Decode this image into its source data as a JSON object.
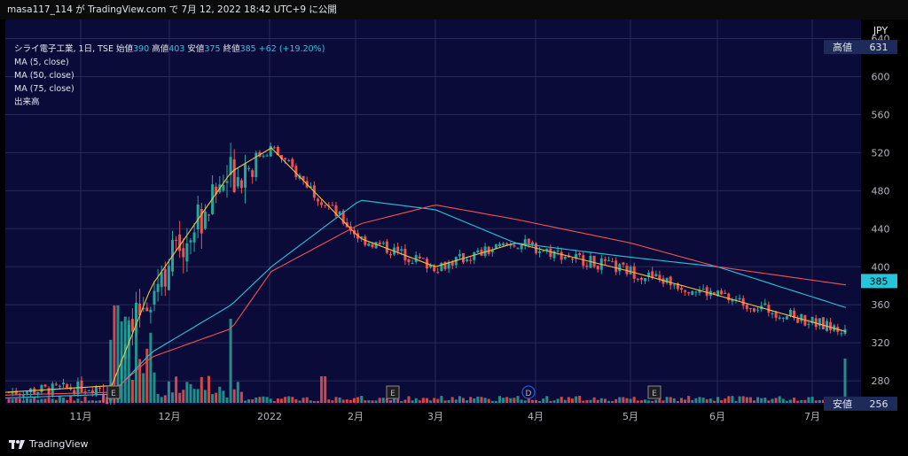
{
  "header": {
    "text": "masa117_114 が TradingView.com で 7月 12, 2022 18:42 UTC+9 に公開"
  },
  "legend": {
    "symbol": "シライ電子工業, 1日, TSE",
    "open_label": "始値",
    "open": "390",
    "high_label": "高値",
    "high": "403",
    "low_label": "安値",
    "low": "375",
    "close_label": "終値",
    "close": "385",
    "change": "+62 (+19.20%)",
    "indicators": [
      "MA (5, close)",
      "MA (50, close)",
      "MA (75, close)",
      "出来高"
    ]
  },
  "footer": {
    "brand": "TradingView"
  },
  "colors": {
    "up": "#26a69a",
    "down": "#ef5350",
    "ma5": "#f5c242",
    "ma50": "#26c6da",
    "ma75": "#ef5350",
    "bg": "#0a0a33"
  },
  "chart_data": {
    "type": "candlestick",
    "currency": "JPY",
    "y_ticks": [
      280,
      320,
      360,
      400,
      440,
      480,
      520,
      560,
      600,
      640
    ],
    "ylim": [
      255,
      660
    ],
    "x_ticks": [
      "11月",
      "12月",
      "2022",
      "2月",
      "3月",
      "4月",
      "5月",
      "6月",
      "7月"
    ],
    "price_tags": {
      "high_label": "高値",
      "high": "631",
      "low_label": "安値",
      "low": "256",
      "last": "385"
    },
    "event_markers": [
      "E",
      "E",
      "D",
      "E"
    ],
    "series": [
      {
        "name": "MA (5, close)",
        "x": [
          "11月",
          "11月下旬",
          "12月",
          "12月中旬",
          "2022",
          "2月",
          "3月",
          "4月",
          "5月",
          "6月",
          "7月"
        ],
        "values": [
          268,
          275,
          380,
          500,
          525,
          430,
          400,
          425,
          395,
          370,
          330
        ]
      },
      {
        "name": "MA (50, close)",
        "x": [
          "11月",
          "11月下旬",
          "12月",
          "12月中旬",
          "2022",
          "2月",
          "3月",
          "4月",
          "5月",
          "6月",
          "7月"
        ],
        "values": [
          262,
          266,
          310,
          360,
          400,
          470,
          460,
          425,
          410,
          400,
          355
        ]
      },
      {
        "name": "MA (75, close)",
        "x": [
          "11月",
          "11月下旬",
          "12月",
          "12月中旬",
          "2022",
          "2月",
          "3月",
          "4月",
          "5月",
          "6月",
          "7月"
        ],
        "values": [
          265,
          268,
          305,
          335,
          395,
          445,
          465,
          450,
          425,
          400,
          380
        ]
      }
    ],
    "ohlc_last": {
      "open": 390,
      "high": 403,
      "low": 375,
      "close": 385
    }
  }
}
